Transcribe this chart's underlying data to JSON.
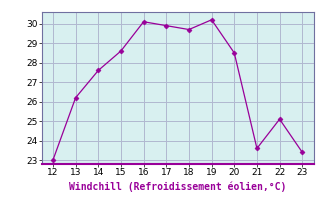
{
  "x": [
    12,
    13,
    14,
    15,
    16,
    17,
    18,
    19,
    20,
    21,
    22,
    23
  ],
  "y": [
    23.0,
    26.2,
    27.6,
    28.6,
    30.1,
    29.9,
    29.7,
    30.2,
    28.5,
    23.6,
    25.1,
    23.4
  ],
  "line_color": "#990099",
  "marker": "D",
  "marker_size": 2.5,
  "background_color": "#d8f0f0",
  "plot_bg_color": "#d8f0f0",
  "outer_bg_color": "#ffffff",
  "grid_color": "#b0b8d0",
  "xlabel": "Windchill (Refroidissement éolien,°C)",
  "xlabel_color": "#990099",
  "xlim": [
    11.5,
    23.5
  ],
  "ylim": [
    22.8,
    30.6
  ],
  "xticks": [
    12,
    13,
    14,
    15,
    16,
    17,
    18,
    19,
    20,
    21,
    22,
    23
  ],
  "yticks": [
    23,
    24,
    25,
    26,
    27,
    28,
    29,
    30
  ],
  "tick_color": "#000000",
  "tick_fontsize": 6.5,
  "xlabel_fontsize": 7.0,
  "spine_color": "#7070a0"
}
